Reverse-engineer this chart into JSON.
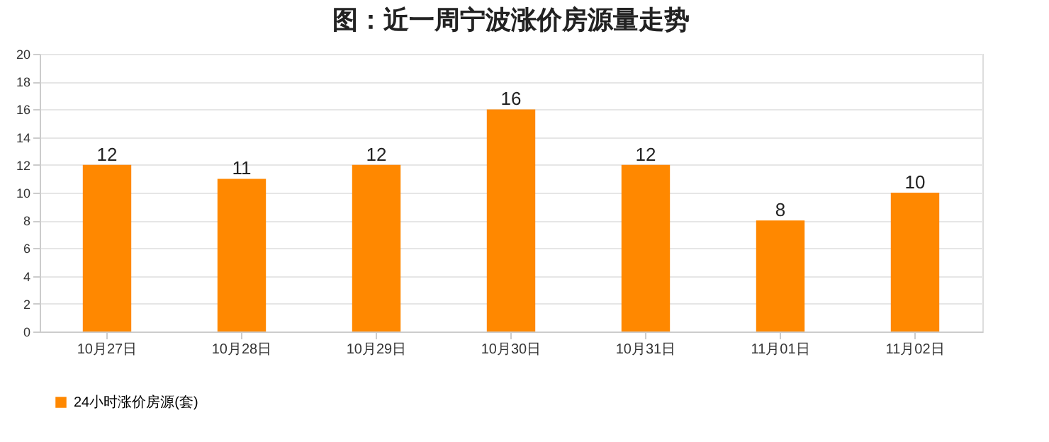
{
  "chart_data": {
    "type": "bar",
    "title": "图：近一周宁波涨价房源量走势",
    "categories": [
      "10月27日",
      "10月28日",
      "10月29日",
      "10月30日",
      "10月31日",
      "11月01日",
      "11月02日"
    ],
    "series": [
      {
        "name": "24小时涨价房源(套)",
        "color": "#ff8800",
        "values": [
          12,
          11,
          12,
          16,
          12,
          8,
          10
        ]
      }
    ],
    "ylim": [
      0,
      20
    ],
    "yticks": [
      0,
      2,
      4,
      6,
      8,
      10,
      12,
      14,
      16,
      18,
      20
    ],
    "grid": "y",
    "legend": "bottom",
    "data_labels": true
  }
}
